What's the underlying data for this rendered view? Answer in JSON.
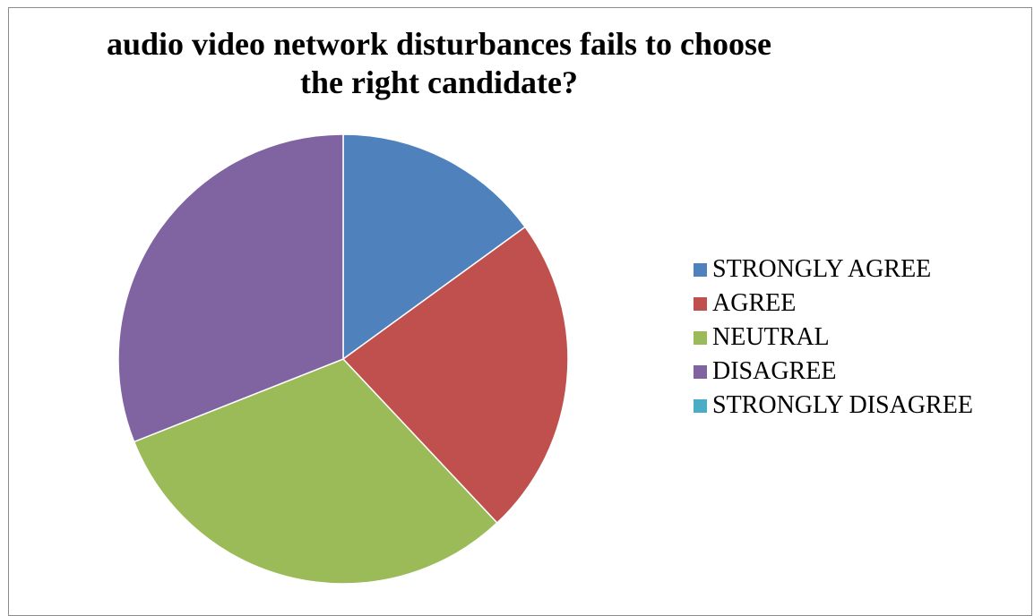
{
  "chart_data": {
    "type": "pie",
    "title": "audio video network disturbances fails to choose the right candidate?",
    "categories": [
      "STRONGLY AGREE",
      "AGREE",
      "NEUTRAL",
      "DISAGREE",
      "STRONGLY DISAGREE"
    ],
    "values": [
      15,
      23,
      31,
      31,
      0
    ],
    "colors": [
      "#4f81bd",
      "#c0504d",
      "#9bbb59",
      "#8064a2",
      "#4bacc6"
    ],
    "legend_position": "right",
    "start_angle": "12 o'clock",
    "direction": "clockwise"
  }
}
